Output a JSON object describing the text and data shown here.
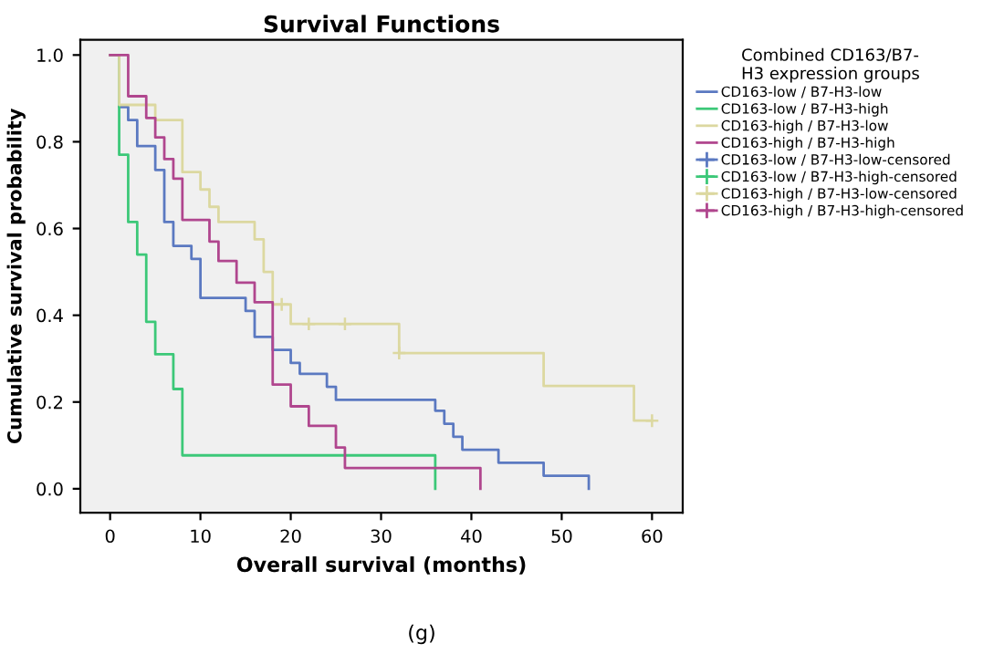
{
  "chart_data": {
    "type": "step",
    "title": "Survival Functions",
    "xlabel": "Overall survival (months)",
    "ylabel": "Cumulative survival probability",
    "legend_title": "Combined CD163/B7-\nH3 expression groups",
    "legend": "right",
    "grid": false,
    "xlim": [
      -3.3,
      63.4
    ],
    "ylim": [
      -0.055,
      1.035
    ],
    "xticks": [
      0,
      10,
      20,
      30,
      40,
      50,
      60
    ],
    "yticks": [
      {
        "value": 0,
        "label": "0.0"
      },
      0.2,
      0.4,
      0.6,
      0.8,
      {
        "value": 1,
        "label": "1.0"
      }
    ],
    "annotations": [
      "(g)"
    ],
    "series": [
      {
        "name": "CD163-low / B7-H3-low",
        "color": "#5b79c1",
        "x": [
          0,
          1,
          2,
          3,
          5,
          6,
          7,
          9,
          10,
          15,
          16,
          18,
          20,
          21,
          24,
          25,
          36,
          37,
          38,
          39,
          43,
          48,
          53
        ],
        "values": [
          1,
          0.88,
          0.85,
          0.79,
          0.735,
          0.615,
          0.56,
          0.53,
          0.44,
          0.41,
          0.35,
          0.32,
          0.29,
          0.265,
          0.235,
          0.205,
          0.18,
          0.15,
          0.12,
          0.09,
          0.06,
          0.03,
          0
        ]
      },
      {
        "name": "CD163-low / B7-H3-high",
        "color": "#3cc878",
        "x": [
          0,
          1,
          2,
          3,
          4,
          5,
          7,
          8,
          36
        ],
        "values": [
          1,
          0.77,
          0.615,
          0.54,
          0.385,
          0.31,
          0.23,
          0.077,
          0
        ]
      },
      {
        "name": "CD163-high / B7-H3-low",
        "color": "#dcd8a0",
        "x": [
          0,
          1,
          5,
          8,
          10,
          11,
          12,
          16,
          17,
          18,
          20,
          32,
          48,
          58,
          60
        ],
        "values": [
          1,
          0.885,
          0.85,
          0.73,
          0.69,
          0.65,
          0.615,
          0.575,
          0.5,
          0.425,
          0.38,
          0.313,
          0.237,
          0.157,
          0.157
        ]
      },
      {
        "name": "CD163-high / B7-H3-high",
        "color": "#b0468e",
        "x": [
          0,
          2,
          4,
          5,
          6,
          7,
          8,
          11,
          12,
          14,
          16,
          18,
          20,
          22,
          25,
          26,
          41
        ],
        "values": [
          1,
          0.905,
          0.855,
          0.81,
          0.76,
          0.715,
          0.62,
          0.57,
          0.525,
          0.475,
          0.43,
          0.24,
          0.19,
          0.145,
          0.095,
          0.048,
          0
        ]
      },
      {
        "name": "CD163-low / B7-H3-low-censored",
        "type": "scatter",
        "marker": "cross",
        "color": "#5b79c1"
      },
      {
        "name": "CD163-low / B7-H3-high-censored",
        "type": "scatter",
        "marker": "cross",
        "color": "#3cc878"
      },
      {
        "name": "CD163-high / B7-H3-low-censored",
        "type": "scatter",
        "marker": "cross",
        "color": "#dcd8a0",
        "x": [
          19,
          22,
          26,
          32,
          60
        ],
        "values": [
          0.425,
          0.38,
          0.38,
          0.313,
          0.157
        ]
      },
      {
        "name": "CD163-high / B7-H3-high-censored",
        "type": "scatter",
        "marker": "cross",
        "color": "#b0468e"
      }
    ]
  }
}
